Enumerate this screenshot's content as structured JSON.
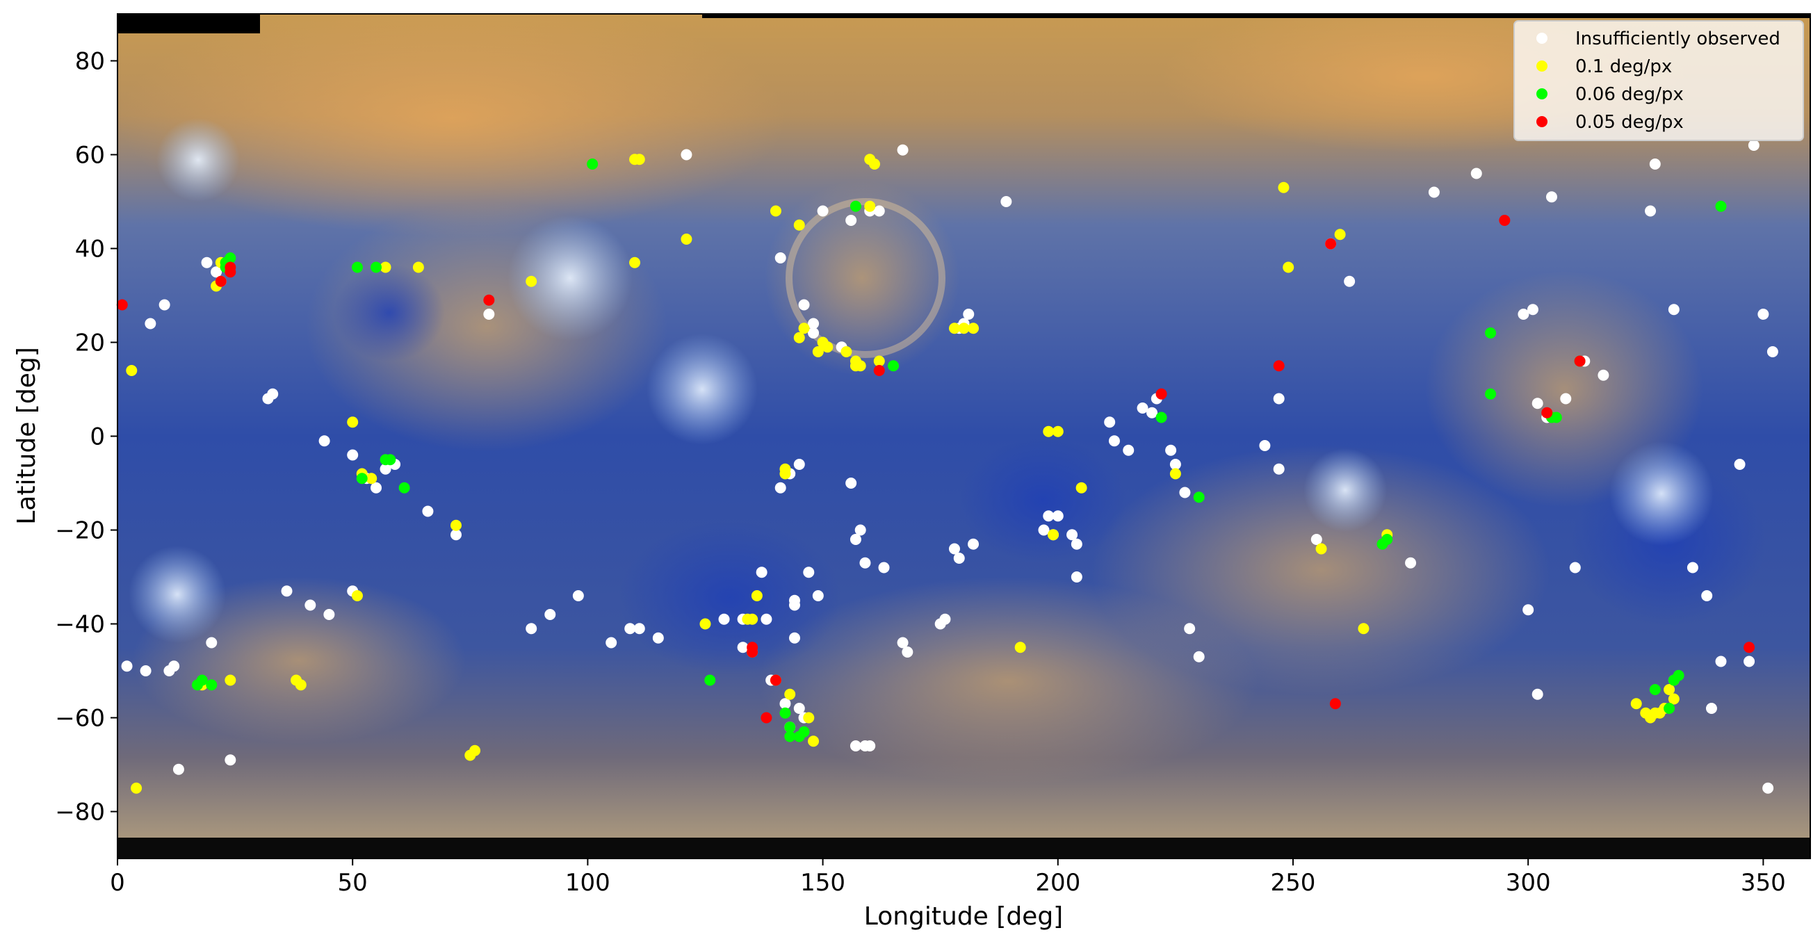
{
  "chart_data": {
    "type": "scatter",
    "title": "",
    "xlabel": "Longitude [deg]",
    "ylabel": "Latitude [deg]",
    "xlim": [
      0,
      360
    ],
    "ylim": [
      -90,
      90
    ],
    "xticks": [
      0,
      50,
      100,
      150,
      200,
      250,
      300,
      350
    ],
    "yticks": [
      -80,
      -60,
      -40,
      -20,
      0,
      20,
      40,
      60,
      80
    ],
    "grid": false,
    "background": "enhanced-color global mosaic of Mercury (equirectangular map)",
    "legend_position": "top-right",
    "series": [
      {
        "name": "Insufficiently observed",
        "color": "#ffffff",
        "points": [
          [
            2,
            -49
          ],
          [
            6,
            -50
          ],
          [
            7,
            24
          ],
          [
            10,
            28
          ],
          [
            11,
            -50
          ],
          [
            12,
            -49
          ],
          [
            13,
            -71
          ],
          [
            19,
            37
          ],
          [
            20,
            -44
          ],
          [
            21,
            35
          ],
          [
            22,
            33
          ],
          [
            24,
            -69
          ],
          [
            32,
            8
          ],
          [
            33,
            9
          ],
          [
            36,
            -33
          ],
          [
            41,
            -36
          ],
          [
            45,
            -38
          ],
          [
            44,
            -1
          ],
          [
            50,
            -4
          ],
          [
            50,
            -33
          ],
          [
            53,
            -9
          ],
          [
            55,
            -11
          ],
          [
            57,
            -7
          ],
          [
            59,
            -6
          ],
          [
            66,
            -16
          ],
          [
            72,
            -21
          ],
          [
            79,
            26
          ],
          [
            88,
            -41
          ],
          [
            92,
            -38
          ],
          [
            98,
            -34
          ],
          [
            105,
            -44
          ],
          [
            109,
            -41
          ],
          [
            111,
            -41
          ],
          [
            115,
            -43
          ],
          [
            121,
            60
          ],
          [
            129,
            -39
          ],
          [
            133,
            -39
          ],
          [
            133,
            -45
          ],
          [
            137,
            -29
          ],
          [
            138,
            -39
          ],
          [
            139,
            -52
          ],
          [
            141,
            -11
          ],
          [
            143,
            -8
          ],
          [
            145,
            -6
          ],
          [
            141,
            38
          ],
          [
            142,
            -57
          ],
          [
            144,
            -43
          ],
          [
            144,
            -35
          ],
          [
            145,
            -58
          ],
          [
            143,
            -62
          ],
          [
            146,
            -60
          ],
          [
            144,
            -36
          ],
          [
            146,
            28
          ],
          [
            147,
            -29
          ],
          [
            148,
            24
          ],
          [
            148,
            22
          ],
          [
            149,
            -34
          ],
          [
            150,
            48
          ],
          [
            154,
            19
          ],
          [
            156,
            46
          ],
          [
            156,
            -10
          ],
          [
            157,
            -22
          ],
          [
            158,
            -20
          ],
          [
            159,
            -27
          ],
          [
            157,
            -66
          ],
          [
            159,
            -66
          ],
          [
            160,
            -66
          ],
          [
            160,
            48
          ],
          [
            162,
            48
          ],
          [
            163,
            -28
          ],
          [
            167,
            61
          ],
          [
            167,
            -44
          ],
          [
            168,
            -46
          ],
          [
            175,
            -40
          ],
          [
            176,
            -39
          ],
          [
            178,
            -24
          ],
          [
            179,
            -26
          ],
          [
            179,
            23
          ],
          [
            180,
            24
          ],
          [
            181,
            26
          ],
          [
            182,
            -23
          ],
          [
            189,
            50
          ],
          [
            197,
            -20
          ],
          [
            198,
            -17
          ],
          [
            199,
            -21
          ],
          [
            200,
            -17
          ],
          [
            203,
            -21
          ],
          [
            204,
            -23
          ],
          [
            204,
            -30
          ],
          [
            211,
            3
          ],
          [
            212,
            -1
          ],
          [
            215,
            -3
          ],
          [
            218,
            6
          ],
          [
            220,
            5
          ],
          [
            221,
            8
          ],
          [
            224,
            -3
          ],
          [
            225,
            -6
          ],
          [
            227,
            -12
          ],
          [
            228,
            -41
          ],
          [
            230,
            -47
          ],
          [
            244,
            -2
          ],
          [
            247,
            8
          ],
          [
            247,
            -7
          ],
          [
            255,
            -22
          ],
          [
            258,
            41
          ],
          [
            262,
            33
          ],
          [
            275,
            -27
          ],
          [
            280,
            52
          ],
          [
            289,
            56
          ],
          [
            299,
            26
          ],
          [
            300,
            -37
          ],
          [
            301,
            27
          ],
          [
            302,
            -55
          ],
          [
            302,
            7
          ],
          [
            304,
            4
          ],
          [
            305,
            51
          ],
          [
            308,
            8
          ],
          [
            310,
            -28
          ],
          [
            312,
            16
          ],
          [
            316,
            13
          ],
          [
            326,
            48
          ],
          [
            327,
            58
          ],
          [
            331,
            27
          ],
          [
            335,
            -28
          ],
          [
            338,
            -34
          ],
          [
            339,
            -58
          ],
          [
            341,
            -48
          ],
          [
            345,
            -6
          ],
          [
            347,
            -48
          ],
          [
            348,
            62
          ],
          [
            350,
            26
          ],
          [
            351,
            -75
          ],
          [
            352,
            18
          ]
        ]
      },
      {
        "name": "0.1 deg/px",
        "color": "#ffff00",
        "points": [
          [
            3,
            14
          ],
          [
            4,
            -75
          ],
          [
            18,
            -53
          ],
          [
            21,
            32
          ],
          [
            22,
            37
          ],
          [
            24,
            -52
          ],
          [
            38,
            -52
          ],
          [
            39,
            -53
          ],
          [
            50,
            3
          ],
          [
            51,
            -34
          ],
          [
            52,
            -8
          ],
          [
            54,
            -9
          ],
          [
            57,
            36
          ],
          [
            64,
            36
          ],
          [
            72,
            -19
          ],
          [
            75,
            -68
          ],
          [
            76,
            -67
          ],
          [
            88,
            33
          ],
          [
            110,
            59
          ],
          [
            111,
            59
          ],
          [
            110,
            37
          ],
          [
            121,
            42
          ],
          [
            125,
            -40
          ],
          [
            134,
            -39
          ],
          [
            135,
            -39
          ],
          [
            135,
            -46
          ],
          [
            136,
            -34
          ],
          [
            140,
            -52
          ],
          [
            140,
            48
          ],
          [
            142,
            -7
          ],
          [
            142,
            -8
          ],
          [
            143,
            -55
          ],
          [
            145,
            21
          ],
          [
            145,
            45
          ],
          [
            146,
            23
          ],
          [
            147,
            -60
          ],
          [
            148,
            -65
          ],
          [
            149,
            18
          ],
          [
            150,
            20
          ],
          [
            151,
            19
          ],
          [
            155,
            18
          ],
          [
            157,
            15
          ],
          [
            157,
            16
          ],
          [
            158,
            15
          ],
          [
            160,
            59
          ],
          [
            160,
            49
          ],
          [
            161,
            58
          ],
          [
            162,
            16
          ],
          [
            178,
            23
          ],
          [
            180,
            23
          ],
          [
            182,
            23
          ],
          [
            192,
            -45
          ],
          [
            198,
            1
          ],
          [
            200,
            1
          ],
          [
            199,
            -21
          ],
          [
            205,
            -11
          ],
          [
            225,
            -8
          ],
          [
            248,
            53
          ],
          [
            249,
            36
          ],
          [
            256,
            -24
          ],
          [
            260,
            43
          ],
          [
            265,
            -41
          ],
          [
            270,
            -21
          ],
          [
            323,
            -57
          ],
          [
            325,
            -59
          ],
          [
            326,
            -60
          ],
          [
            327,
            -59
          ],
          [
            328,
            -59
          ],
          [
            329,
            -58
          ],
          [
            331,
            -56
          ],
          [
            330,
            -54
          ],
          [
            331,
            -52
          ]
        ]
      },
      {
        "name": "0.06 deg/px",
        "color": "#00ff00",
        "points": [
          [
            17,
            -53
          ],
          [
            18,
            -52
          ],
          [
            20,
            -53
          ],
          [
            23,
            36
          ],
          [
            23,
            37
          ],
          [
            24,
            38
          ],
          [
            51,
            36
          ],
          [
            55,
            36
          ],
          [
            57,
            -5
          ],
          [
            58,
            -5
          ],
          [
            52,
            -9
          ],
          [
            61,
            -11
          ],
          [
            101,
            58
          ],
          [
            126,
            -52
          ],
          [
            145,
            -64
          ],
          [
            146,
            -63
          ],
          [
            143,
            -64
          ],
          [
            142,
            -59
          ],
          [
            143,
            -62
          ],
          [
            157,
            49
          ],
          [
            165,
            15
          ],
          [
            222,
            4
          ],
          [
            230,
            -13
          ],
          [
            269,
            -23
          ],
          [
            270,
            -22
          ],
          [
            292,
            22
          ],
          [
            292,
            9
          ],
          [
            305,
            4
          ],
          [
            306,
            4
          ],
          [
            311,
            16
          ],
          [
            330,
            -58
          ],
          [
            331,
            -52
          ],
          [
            332,
            -51
          ],
          [
            341,
            49
          ],
          [
            327,
            -54
          ]
        ]
      },
      {
        "name": "0.05 deg/px",
        "color": "#ff0000",
        "points": [
          [
            1,
            28
          ],
          [
            22,
            33
          ],
          [
            24,
            35
          ],
          [
            24,
            36
          ],
          [
            79,
            29
          ],
          [
            135,
            -46
          ],
          [
            135,
            -45
          ],
          [
            138,
            -60
          ],
          [
            140,
            -52
          ],
          [
            162,
            14
          ],
          [
            222,
            9
          ],
          [
            247,
            15
          ],
          [
            258,
            41
          ],
          [
            259,
            -57
          ],
          [
            295,
            46
          ],
          [
            304,
            5
          ],
          [
            311,
            16
          ],
          [
            347,
            -45
          ]
        ]
      }
    ]
  }
}
